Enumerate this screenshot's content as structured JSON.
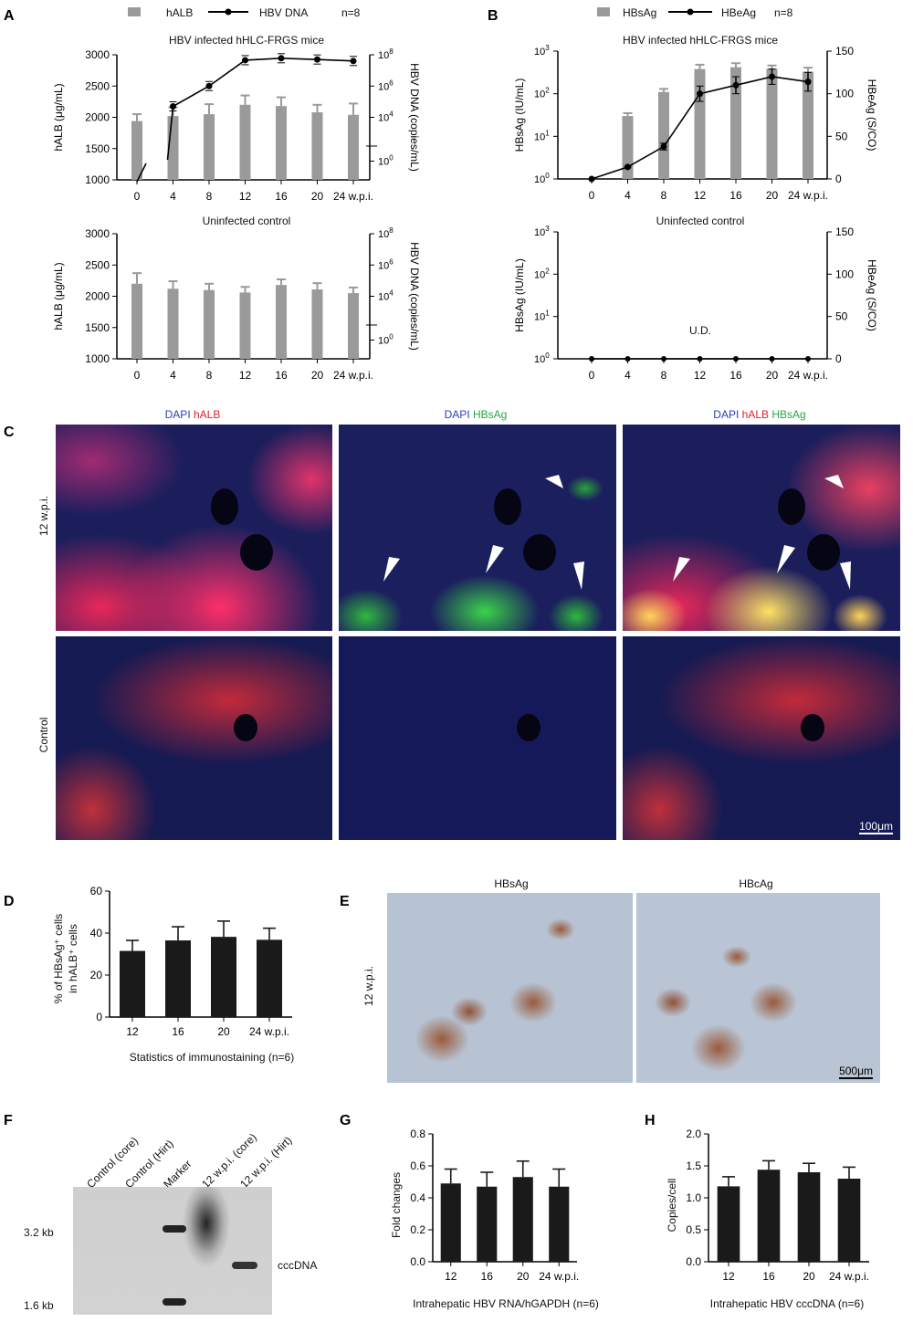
{
  "panels": {
    "A": "A",
    "B": "B",
    "C": "C",
    "D": "D",
    "E": "E",
    "F": "F",
    "G": "G",
    "H": "H"
  },
  "panelA": {
    "legend": {
      "bar": "hALB",
      "line": "HBV DNA",
      "n": "n=8"
    },
    "top_title": "HBV infected hHLC-FRGS mice",
    "bottom_title": "Uninfected control",
    "ylabel_left": "hALB (μg/mL)",
    "ylabel_right": "HBV DNA (copies/mL)",
    "yticks_left": [
      "3000",
      "2500",
      "2000",
      "1500",
      "1000"
    ],
    "yticks_right": [
      {
        "b": "10",
        "e": "8"
      },
      {
        "b": "10",
        "e": "6"
      },
      {
        "b": "10",
        "e": "4"
      },
      {
        "b": "10",
        "e": "0"
      }
    ],
    "xticks": [
      "0",
      "4",
      "8",
      "12",
      "16",
      "20",
      "24 w.p.i."
    ]
  },
  "panelB": {
    "legend": {
      "bar": "HBsAg",
      "line": "HBeAg",
      "n": "n=8"
    },
    "top_title": "HBV infected hHLC-FRGS mice",
    "bottom_title": "Uninfected control",
    "ylabel_left": "HBsAg (IU/mL)",
    "ylabel_right": "HBeAg (S/CO)",
    "yticks_left": [
      {
        "b": "10",
        "e": "3"
      },
      {
        "b": "10",
        "e": "2"
      },
      {
        "b": "10",
        "e": "1"
      },
      {
        "b": "10",
        "e": "0"
      }
    ],
    "yticks_right": [
      "150",
      "100",
      "50",
      "0"
    ],
    "xticks": [
      "0",
      "4",
      "8",
      "12",
      "16",
      "20",
      "24 w.p.i."
    ],
    "ud": "U.D."
  },
  "panelC": {
    "headers": [
      [
        {
          "t": "DAPI",
          "c": "blue"
        },
        {
          "t": " hALB",
          "c": "red"
        }
      ],
      [
        {
          "t": "DAPI",
          "c": "blue"
        },
        {
          "t": " HBsAg",
          "c": "green"
        }
      ],
      [
        {
          "t": "DAPI",
          "c": "blue"
        },
        {
          "t": " hALB",
          "c": "red"
        },
        {
          "t": " HBsAg",
          "c": "green"
        }
      ]
    ],
    "row_labels": [
      "12 w.p.i.",
      "Control"
    ],
    "scale_bar": "100μm"
  },
  "panelD": {
    "ylabel_1": "% of HBsAg⁺ cells",
    "ylabel_2": "in hALB⁺ cells",
    "xlabel": "Statistics of immunostaining (n=6)",
    "yticks": [
      "60",
      "40",
      "20",
      "0"
    ],
    "xticks": [
      "12",
      "16",
      "20",
      "24 w.p.i."
    ]
  },
  "panelE": {
    "headers": [
      "HBsAg",
      "HBcAg"
    ],
    "row_label": "12 w.p.i.",
    "scale_bar": "500μm"
  },
  "panelF": {
    "lanes": [
      "Control (core)",
      "Control (Hirt)",
      "Marker",
      "12 w.p.i. (core)",
      "12 w.p.i. (Hirt)"
    ],
    "sizes": [
      "3.2 kb",
      "1.6 kb"
    ],
    "band_label": "cccDNA"
  },
  "panelG": {
    "ylabel": "Fold changes",
    "xlabel": "Intrahepatic HBV RNA/hGAPDH (n=6)",
    "yticks": [
      "0.8",
      "0.6",
      "0.4",
      "0.2",
      "0.0"
    ],
    "xticks": [
      "12",
      "16",
      "20",
      "24 w.p.i."
    ]
  },
  "panelH": {
    "ylabel": "Copies/cell",
    "xlabel": "Intrahepatic HBV cccDNA (n=6)",
    "yticks": [
      "2.0",
      "1.5",
      "1.0",
      "0.5",
      "0.0"
    ],
    "xticks": [
      "12",
      "16",
      "20",
      "24 w.p.i."
    ]
  },
  "chart_data": [
    {
      "id": "A-top",
      "type": "bar+line",
      "categories": [
        "0",
        "4",
        "8",
        "12",
        "16",
        "20",
        "24"
      ],
      "series": [
        {
          "name": "hALB",
          "values": [
            1940,
            2020,
            2050,
            2200,
            2180,
            2080,
            2040
          ],
          "errors": [
            110,
            140,
            160,
            150,
            140,
            120,
            180
          ]
        },
        {
          "name": "HBV DNA",
          "values": [
            1,
            50000,
            1000000,
            45000000,
            60000000,
            50000000,
            40000000
          ],
          "scale": "log",
          "points": [
            1,
            2,
            3,
            4,
            5,
            6
          ]
        }
      ],
      "ylim_left": [
        1000,
        3000
      ]
    },
    {
      "id": "A-bottom",
      "type": "bar",
      "categories": [
        "0",
        "4",
        "8",
        "12",
        "16",
        "20",
        "24"
      ],
      "series": [
        {
          "name": "hALB",
          "values": [
            2200,
            2120,
            2100,
            2060,
            2180,
            2110,
            2050
          ],
          "errors": [
            170,
            120,
            100,
            90,
            90,
            100,
            90
          ]
        }
      ],
      "ylim_left": [
        1000,
        3000
      ]
    },
    {
      "id": "B-top",
      "type": "bar+line",
      "categories": [
        "0",
        "4",
        "8",
        "12",
        "16",
        "20",
        "24"
      ],
      "series": [
        {
          "name": "HBsAg",
          "values": [
            1,
            30,
            110,
            380,
            420,
            390,
            330
          ],
          "errors": [
            0,
            5,
            20,
            100,
            100,
            70,
            80
          ],
          "scale": "log"
        },
        {
          "name": "HBeAg",
          "values": [
            0,
            14,
            38,
            100,
            110,
            120,
            114
          ],
          "errors": [
            0,
            1,
            4,
            9,
            10,
            9,
            11
          ]
        }
      ],
      "ylim_right": [
        0,
        150
      ]
    },
    {
      "id": "B-bottom",
      "type": "line",
      "categories": [
        "0",
        "4",
        "8",
        "12",
        "16",
        "20",
        "24"
      ],
      "series": [
        {
          "name": "HBeAg",
          "values": [
            0,
            0,
            0,
            0,
            0,
            0,
            0
          ]
        }
      ],
      "ylim_right": [
        0,
        150
      ]
    },
    {
      "id": "D",
      "type": "bar",
      "categories": [
        "12",
        "16",
        "20",
        "24"
      ],
      "values": [
        31.5,
        36.5,
        38.2,
        36.8
      ],
      "errors": [
        5,
        6.5,
        7.5,
        5.5
      ],
      "ylim": [
        0,
        60
      ]
    },
    {
      "id": "G",
      "type": "bar",
      "categories": [
        "12",
        "16",
        "20",
        "24"
      ],
      "values": [
        0.49,
        0.47,
        0.53,
        0.47
      ],
      "errors": [
        0.09,
        0.09,
        0.1,
        0.11
      ],
      "ylim": [
        0,
        0.8
      ]
    },
    {
      "id": "H",
      "type": "bar",
      "categories": [
        "12",
        "16",
        "20",
        "24"
      ],
      "values": [
        1.18,
        1.44,
        1.4,
        1.3
      ],
      "errors": [
        0.15,
        0.14,
        0.14,
        0.18
      ],
      "ylim": [
        0,
        2.0
      ]
    }
  ]
}
